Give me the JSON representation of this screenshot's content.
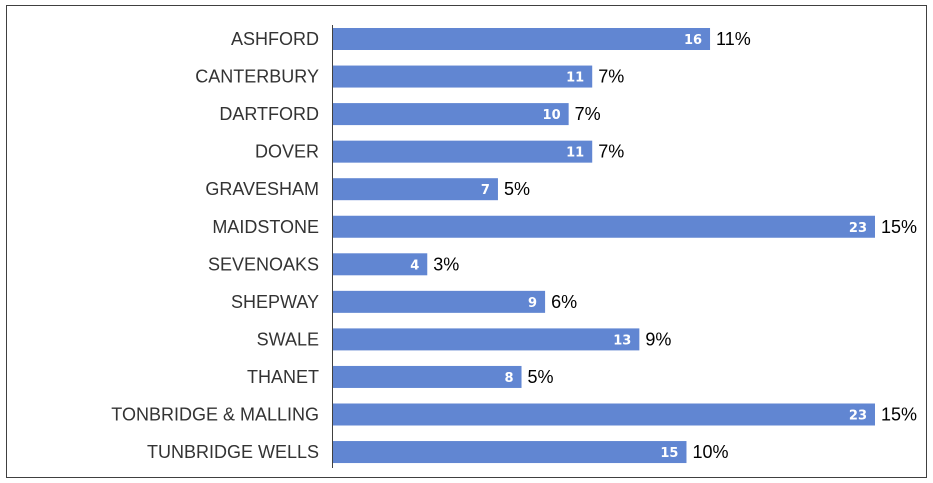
{
  "chart_data": {
    "type": "bar",
    "orientation": "horizontal",
    "title": "",
    "xlabel": "",
    "ylabel": "",
    "xlim": [
      0,
      23
    ],
    "grid": false,
    "legend": "none",
    "bar_color": "#6186D2",
    "categories": [
      "ASHFORD",
      "CANTERBURY",
      "DARTFORD",
      "DOVER",
      "GRAVESHAM",
      "MAIDSTONE",
      "SEVENOAKS",
      "SHEPWAY",
      "SWALE",
      "THANET",
      "TONBRIDGE & MALLING",
      "TUNBRIDGE WELLS"
    ],
    "values": [
      16,
      11,
      10,
      11,
      7,
      23,
      4,
      9,
      13,
      8,
      23,
      15
    ],
    "percent_labels": [
      "11%",
      "7%",
      "7%",
      "7%",
      "5%",
      "15%",
      "3%",
      "6%",
      "9%",
      "5%",
      "15%",
      "10%"
    ]
  }
}
